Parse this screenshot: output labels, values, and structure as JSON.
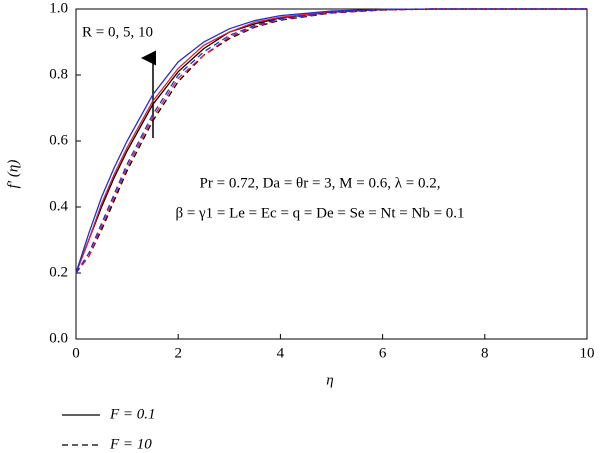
{
  "chart_data": {
    "type": "line",
    "x_label": "η",
    "y_label": "f′ (η)",
    "annotations": [
      "R = 0, 5, 10",
      "Pr = 0.72, Da = θr = 3, M = 0.6, λ = 0.2,",
      "β = γ1 = Le = Ec = q = De = Se = Nt = Nb = 0.1"
    ],
    "x": [
      0,
      0.25,
      0.5,
      0.75,
      1,
      1.5,
      2,
      2.5,
      3,
      3.5,
      4,
      5,
      6,
      7,
      8,
      9,
      10
    ],
    "series": [
      {
        "color": "#000000",
        "dash": "solid",
        "values": [
          0.2,
          0.3,
          0.4,
          0.49,
          0.57,
          0.71,
          0.81,
          0.88,
          0.93,
          0.955,
          0.973,
          0.991,
          0.998,
          1,
          1,
          1,
          1
        ]
      },
      {
        "color": "#e0202a",
        "dash": "solid",
        "values": [
          0.2,
          0.3,
          0.41,
          0.5,
          0.58,
          0.72,
          0.82,
          0.89,
          0.93,
          0.96,
          0.975,
          0.992,
          0.998,
          1,
          1,
          1,
          1
        ]
      },
      {
        "color": "#2a2ad0",
        "dash": "solid",
        "values": [
          0.2,
          0.32,
          0.43,
          0.52,
          0.6,
          0.74,
          0.84,
          0.9,
          0.94,
          0.965,
          0.98,
          0.994,
          0.999,
          1,
          1,
          1,
          1
        ]
      },
      {
        "color": "#000000",
        "dash": "dashed",
        "values": [
          0.2,
          0.25,
          0.33,
          0.42,
          0.51,
          0.66,
          0.78,
          0.86,
          0.91,
          0.945,
          0.966,
          0.988,
          0.997,
          1,
          1,
          1,
          1
        ]
      },
      {
        "color": "#e0202a",
        "dash": "dashed",
        "values": [
          0.2,
          0.25,
          0.34,
          0.43,
          0.52,
          0.67,
          0.79,
          0.86,
          0.915,
          0.947,
          0.968,
          0.989,
          0.997,
          1,
          1,
          1,
          1
        ]
      },
      {
        "color": "#2a2ad0",
        "dash": "dashed",
        "values": [
          0.2,
          0.26,
          0.35,
          0.44,
          0.53,
          0.68,
          0.8,
          0.87,
          0.92,
          0.95,
          0.97,
          0.99,
          0.998,
          1,
          1,
          1,
          1
        ]
      }
    ],
    "legend": [
      {
        "label": "F = 0.1",
        "dash": "solid"
      },
      {
        "label": "F = 10",
        "dash": "dashed"
      }
    ],
    "xlim": [
      0,
      10
    ],
    "xticks": [
      0,
      2,
      4,
      6,
      8,
      10
    ],
    "ylim": [
      0,
      1
    ],
    "yticks": [
      {
        "value": 0,
        "label": "0.0"
      },
      0.2,
      0.4,
      0.6,
      0.8,
      {
        "value": 1,
        "label": "1.0"
      }
    ],
    "grid": false
  }
}
